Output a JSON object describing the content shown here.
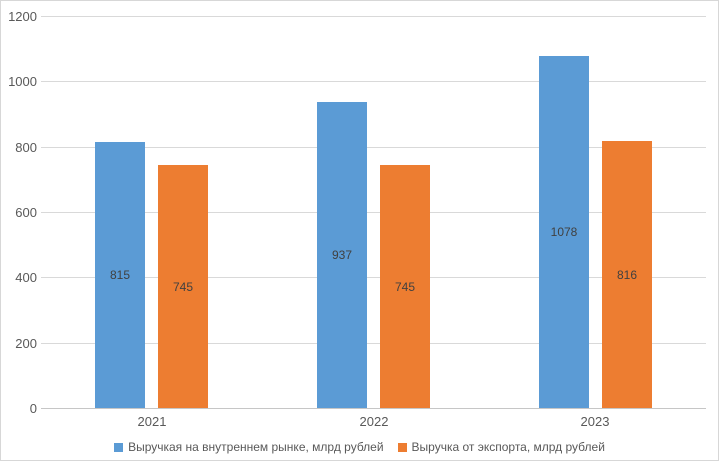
{
  "chart_data": {
    "type": "bar",
    "categories": [
      "2021",
      "2022",
      "2023"
    ],
    "series": [
      {
        "name": "Выручкая на внутреннем рынке, млрд рублей",
        "color": "#5b9bd5",
        "values": [
          815,
          937,
          1078
        ]
      },
      {
        "name": "Выручка от экспорта, млрд рублей",
        "color": "#ed7d31",
        "values": [
          745,
          745,
          816
        ]
      }
    ],
    "title": "",
    "xlabel": "",
    "ylabel": "",
    "ylim": [
      0,
      1200
    ],
    "yticks": [
      0,
      200,
      400,
      600,
      800,
      1000,
      1200
    ],
    "grid": "horizontal",
    "gridline_color": "#d9d9d9",
    "legend_position": "bottom",
    "data_labels": "center",
    "data_label_color": "#404040",
    "axis_text_color": "#595959",
    "background_color": "#ffffff"
  }
}
